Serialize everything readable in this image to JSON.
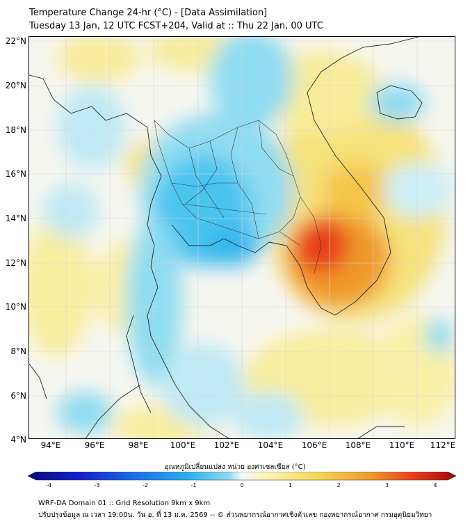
{
  "header": {
    "title_line1": "Temperature Change 24-hr (°C) - [Data Assimilation]",
    "title_line2": "Tuesday 13 Jan, 12 UTC FCST+204, Valid at :: Thu 22 Jan, 00 UTC"
  },
  "axes": {
    "lat_labels": [
      "22°N",
      "20°N",
      "18°N",
      "16°N",
      "14°N",
      "12°N",
      "10°N",
      "8°N",
      "6°N",
      "4°N"
    ],
    "lon_labels": [
      "94°E",
      "96°E",
      "98°E",
      "100°E",
      "102°E",
      "104°E",
      "106°E",
      "108°E",
      "110°E",
      "112°E"
    ]
  },
  "colorbar": {
    "title": "อุณหภูมิเปลี่ยนแปลง หน่วย องศาเซลเซียส (°C)",
    "ticks": [
      "-4",
      "-3",
      "-2",
      "-1",
      "0",
      "1",
      "2",
      "3",
      "4"
    ],
    "colors": [
      "#0a0a7a",
      "#1520c8",
      "#1a6ee8",
      "#2fb2ee",
      "#8fdcf2",
      "#f2f8fb",
      "#fbf4b0",
      "#f5d55a",
      "#f0992a",
      "#e8401a",
      "#a00808"
    ]
  },
  "footer": {
    "line1": "WRF-DA Domain 01 :: Grid Resolution 9km x 9km",
    "line2": "ปรับปรุงข้อมูล ณ เวลา 19:00น. วัน อ. ที่ 13 ม.ค. 2569 -- © ส่วนพยากรณ์อากาศเชิงตัวเลข กองพยากรณ์อากาศ กรมอุตุนิยมวิทยา"
  },
  "map": {
    "land_color": "#f8f8f4",
    "warm_color": "#f6e27a",
    "hot_color": "#f0992a",
    "peak_color": "#e8401a",
    "cool_color": "#8fdcf2",
    "cold_color": "#38b8ee",
    "grid_color": "#d6d6d6",
    "coast_color": "#222222"
  }
}
